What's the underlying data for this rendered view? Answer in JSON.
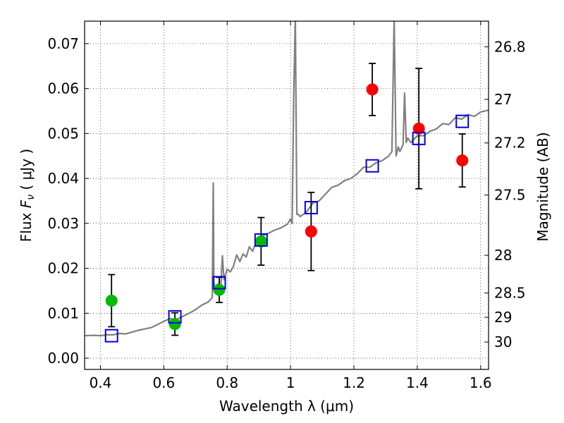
{
  "chart_data": {
    "type": "scatter",
    "xlabel": "Wavelength  λ (μm)",
    "ylabel": "Flux  F_ν  ( μJy )",
    "ylabel_right": "Magnitude (AB)",
    "xlim": [
      0.35,
      1.625
    ],
    "ylim": [
      -0.0025,
      0.075
    ],
    "grid": true,
    "x_ticks": [
      0.4,
      0.6,
      0.8,
      1.0,
      1.2,
      1.4,
      1.6
    ],
    "x_tick_labels": [
      "0.4",
      "0.6",
      "0.8",
      "1",
      "1.2",
      "1.4",
      "1.6"
    ],
    "y_ticks": [
      0.0,
      0.01,
      0.02,
      0.03,
      0.04,
      0.05,
      0.06,
      0.07
    ],
    "y_tick_labels": [
      "0.00",
      "0.01",
      "0.02",
      "0.03",
      "0.04",
      "0.05",
      "0.06",
      "0.07"
    ],
    "right_ticks": [
      {
        "flux": 0.0693,
        "label": "26.8"
      },
      {
        "flux": 0.0576,
        "label": "27"
      },
      {
        "flux": 0.0479,
        "label": "27.2"
      },
      {
        "flux": 0.0363,
        "label": "27.5"
      },
      {
        "flux": 0.0229,
        "label": "28"
      },
      {
        "flux": 0.0145,
        "label": "28.5"
      },
      {
        "flux": 0.0091,
        "label": "29"
      },
      {
        "flux": 0.0036,
        "label": "30"
      }
    ],
    "series": [
      {
        "marker": "circle",
        "color": "#00bb00",
        "points": [
          {
            "x": 0.435,
            "y": 0.0128,
            "err": 0.0058
          },
          {
            "x": 0.635,
            "y": 0.0076,
            "err": 0.0025
          },
          {
            "x": 0.775,
            "y": 0.0152,
            "err": 0.0028
          },
          {
            "x": 0.907,
            "y": 0.026,
            "err": 0.0053
          }
        ]
      },
      {
        "marker": "circle",
        "color": "#ff0000",
        "points": [
          {
            "x": 1.065,
            "y": 0.0282,
            "err": 0.0087
          },
          {
            "x": 1.258,
            "y": 0.0598,
            "err": 0.0058
          },
          {
            "x": 1.405,
            "y": 0.0511,
            "err": 0.0134
          },
          {
            "x": 1.542,
            "y": 0.044,
            "err": 0.0059
          }
        ]
      },
      {
        "marker": "square",
        "color": "#0000dd",
        "points": [
          {
            "x": 0.435,
            "y": 0.005
          },
          {
            "x": 0.635,
            "y": 0.0092
          },
          {
            "x": 0.775,
            "y": 0.0168
          },
          {
            "x": 0.907,
            "y": 0.0263
          },
          {
            "x": 1.065,
            "y": 0.0335
          },
          {
            "x": 1.258,
            "y": 0.0428
          },
          {
            "x": 1.405,
            "y": 0.0489
          },
          {
            "x": 1.542,
            "y": 0.0527
          }
        ]
      },
      {
        "type": "line",
        "color": "#808080",
        "x": [
          0.35,
          0.38,
          0.4,
          0.42,
          0.44,
          0.46,
          0.48,
          0.5,
          0.52,
          0.54,
          0.56,
          0.58,
          0.6,
          0.62,
          0.64,
          0.66,
          0.68,
          0.7,
          0.72,
          0.74,
          0.753,
          0.756,
          0.758,
          0.761,
          0.764,
          0.77,
          0.78,
          0.785,
          0.79,
          0.8,
          0.81,
          0.82,
          0.83,
          0.84,
          0.85,
          0.86,
          0.87,
          0.88,
          0.89,
          0.9,
          0.91,
          0.93,
          0.95,
          0.97,
          0.99,
          1.0,
          1.005,
          1.01,
          1.015,
          1.02,
          1.025,
          1.03,
          1.05,
          1.07,
          1.09,
          1.11,
          1.13,
          1.15,
          1.17,
          1.19,
          1.21,
          1.23,
          1.25,
          1.27,
          1.29,
          1.31,
          1.32,
          1.327,
          1.333,
          1.34,
          1.345,
          1.355,
          1.36,
          1.365,
          1.37,
          1.38,
          1.4,
          1.42,
          1.44,
          1.46,
          1.48,
          1.5,
          1.52,
          1.54,
          1.56,
          1.58,
          1.6,
          1.625
        ],
        "y": [
          0.005,
          0.0051,
          0.005,
          0.0052,
          0.0052,
          0.0055,
          0.0054,
          0.0058,
          0.0062,
          0.0065,
          0.0068,
          0.0075,
          0.0082,
          0.0088,
          0.0086,
          0.0093,
          0.01,
          0.0108,
          0.0118,
          0.0125,
          0.0135,
          0.039,
          0.017,
          0.0158,
          0.016,
          0.0165,
          0.0162,
          0.0228,
          0.0175,
          0.0198,
          0.0192,
          0.0205,
          0.023,
          0.0215,
          0.0232,
          0.0225,
          0.0248,
          0.0238,
          0.0255,
          0.0258,
          0.0272,
          0.0278,
          0.0285,
          0.029,
          0.0298,
          0.031,
          0.03,
          0.058,
          0.076,
          0.032,
          0.032,
          0.0315,
          0.0325,
          0.0345,
          0.035,
          0.0365,
          0.038,
          0.0385,
          0.0395,
          0.04,
          0.041,
          0.0425,
          0.0425,
          0.0435,
          0.044,
          0.045,
          0.046,
          0.076,
          0.045,
          0.047,
          0.046,
          0.0475,
          0.059,
          0.048,
          0.049,
          0.048,
          0.0495,
          0.0495,
          0.0505,
          0.051,
          0.0522,
          0.052,
          0.0535,
          0.0532,
          0.0542,
          0.0538,
          0.0548,
          0.0552
        ]
      }
    ]
  }
}
